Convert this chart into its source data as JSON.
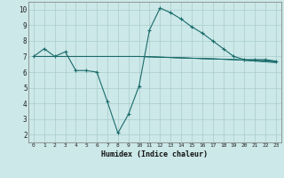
{
  "title": "",
  "xlabel": "Humidex (Indice chaleur)",
  "bg_color": "#cce8e8",
  "grid_color": "#aacccc",
  "line_color": "#1a6b6b",
  "xlim": [
    -0.5,
    23.5
  ],
  "ylim": [
    1.5,
    10.5
  ],
  "xticks": [
    0,
    1,
    2,
    3,
    4,
    5,
    6,
    7,
    8,
    9,
    10,
    11,
    12,
    13,
    14,
    15,
    16,
    17,
    18,
    19,
    20,
    21,
    22,
    23
  ],
  "yticks": [
    2,
    3,
    4,
    5,
    6,
    7,
    8,
    9,
    10
  ],
  "line1_x": [
    0,
    1,
    2,
    3,
    4,
    5,
    6,
    7,
    8,
    9,
    10,
    11,
    12,
    13,
    14,
    15,
    16,
    17,
    18,
    19,
    20,
    21,
    22,
    23
  ],
  "line1_y": [
    7.0,
    7.5,
    7.0,
    7.3,
    6.1,
    6.1,
    6.0,
    4.1,
    2.1,
    3.3,
    5.1,
    8.7,
    10.1,
    9.8,
    9.4,
    8.9,
    8.5,
    8.0,
    7.5,
    7.0,
    6.8,
    6.8,
    6.8,
    6.7
  ],
  "line2_x": [
    0,
    10,
    19,
    23
  ],
  "line2_y": [
    7.0,
    7.0,
    6.8,
    6.7
  ],
  "line3_x": [
    0,
    10,
    19,
    23
  ],
  "line3_y": [
    7.0,
    7.0,
    6.8,
    6.65
  ],
  "line4_x": [
    0,
    10,
    19,
    23
  ],
  "line4_y": [
    7.0,
    7.0,
    6.8,
    6.6
  ],
  "marker_size": 3.5,
  "linewidth": 0.8
}
